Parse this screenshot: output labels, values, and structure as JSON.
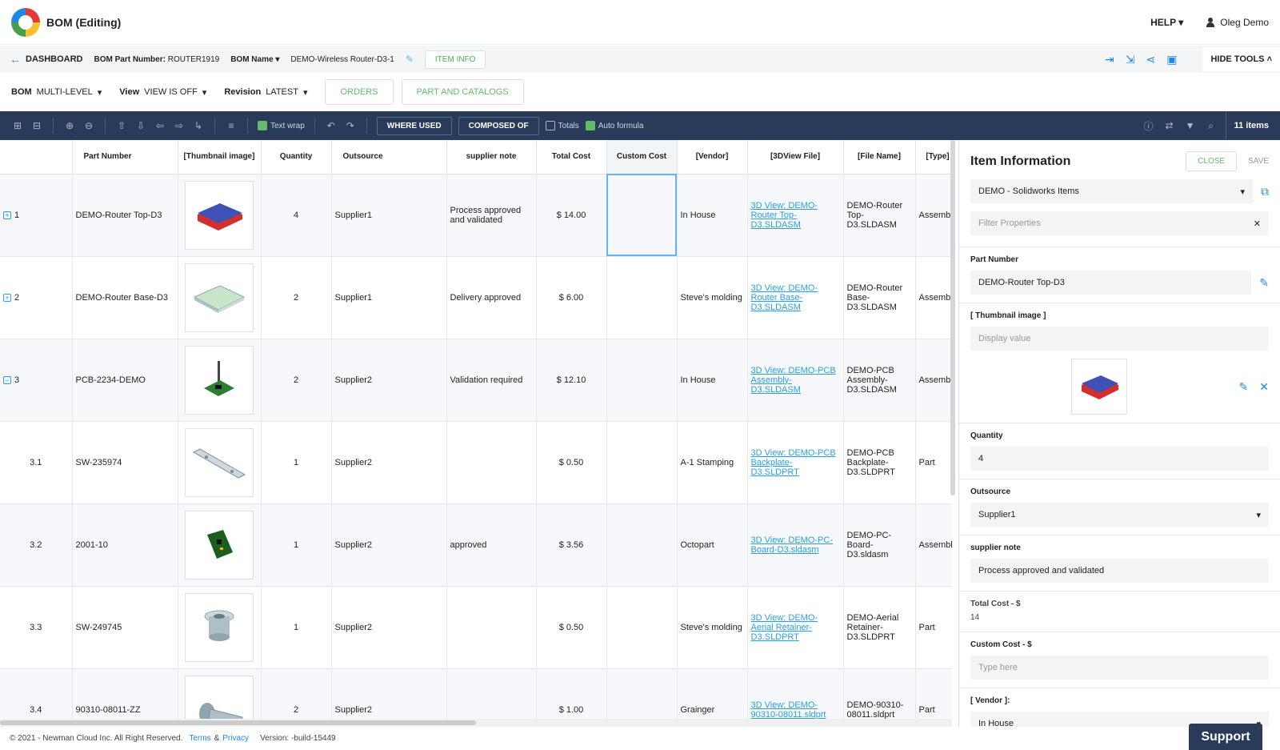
{
  "app": {
    "title": "BOM (Editing)",
    "help": "HELP",
    "user": "Oleg Demo"
  },
  "bar2": {
    "dashboard": "DASHBOARD",
    "part_number_label": "BOM Part Number:",
    "part_number": "ROUTER1919",
    "bom_name_label": "BOM Name",
    "bom_name": "DEMO-Wireless Router-D3-1",
    "item_info": "ITEM INFO",
    "hide_tools": "HIDE TOOLS"
  },
  "bar3": {
    "bom_label": "BOM",
    "bom_value": "MULTI-LEVEL",
    "view_label": "View",
    "view_value": "VIEW IS OFF",
    "revision_label": "Revision",
    "revision_value": "LATEST",
    "orders": "ORDERS",
    "catalogs": "PART AND CATALOGS"
  },
  "toolbar": {
    "text_wrap": "Text wrap",
    "where_used": "WHERE USED",
    "composed_of": "COMPOSED OF",
    "totals": "Totals",
    "auto_formula": "Auto formula",
    "items_count": "11 items"
  },
  "columns": [
    "Part Number",
    "[Thumbnail image]",
    "Quantity",
    "Outsource",
    "supplier note",
    "Total Cost",
    "Custom Cost",
    "[Vendor]",
    "[3DView File]",
    "[File Name]",
    "[Type]"
  ],
  "rows": [
    {
      "idx": "1",
      "expand": "+",
      "part": "DEMO-Router Top-D3",
      "thumb": "router-top",
      "qty": "4",
      "outsource": "Supplier1",
      "note": "Process approved and validated",
      "cost": "$ 14.00",
      "custom": "",
      "vendor": "In House",
      "view": "3D View: DEMO-Router Top-D3.SLDASM",
      "file": "DEMO-Router Top-D3.SLDASM",
      "type": "Assembly"
    },
    {
      "idx": "2",
      "expand": "+",
      "part": "DEMO-Router Base-D3",
      "thumb": "router-base",
      "qty": "2",
      "outsource": "Supplier1",
      "note": "Delivery approved",
      "cost": "$ 6.00",
      "custom": "",
      "vendor": "Steve's molding",
      "view": "3D View: DEMO-Router Base-D3.SLDASM",
      "file": "DEMO-Router Base-D3.SLDASM",
      "type": "Assembly"
    },
    {
      "idx": "3",
      "expand": "-",
      "part": "PCB-2234-DEMO",
      "thumb": "pcb-assembly",
      "qty": "2",
      "outsource": "Supplier2",
      "note": "Validation required",
      "cost": "$ 12.10",
      "custom": "",
      "vendor": "In House",
      "view": "3D View: DEMO-PCB Assembly-D3.SLDASM",
      "file": "DEMO-PCB Assembly-D3.SLDASM",
      "type": "Assembly"
    },
    {
      "idx": "3.1",
      "expand": "",
      "part": "SW-235974",
      "thumb": "backplate",
      "qty": "1",
      "outsource": "Supplier2",
      "note": "",
      "cost": "$ 0.50",
      "custom": "",
      "vendor": "A-1 Stamping",
      "view": "3D View: DEMO-PCB Backplate-D3.SLDPRT",
      "file": "DEMO-PCB Backplate-D3.SLDPRT",
      "type": "Part"
    },
    {
      "idx": "3.2",
      "expand": "",
      "part": "2001-10",
      "thumb": "pc-board",
      "qty": "1",
      "outsource": "Supplier2",
      "note": "approved",
      "cost": "$ 3.56",
      "custom": "",
      "vendor": "Octopart",
      "view": "3D View: DEMO-PC-Board-D3.sldasm",
      "file": "DEMO-PC-Board-D3.sldasm",
      "type": "Assembly"
    },
    {
      "idx": "3.3",
      "expand": "",
      "part": "SW-249745",
      "thumb": "retainer",
      "qty": "1",
      "outsource": "Supplier2",
      "note": "",
      "cost": "$ 0.50",
      "custom": "",
      "vendor": "Steve's molding",
      "view": "3D View: DEMO-Aerial Retainer-D3.SLDPRT",
      "file": "DEMO-Aerial Retainer-D3.SLDPRT",
      "type": "Part"
    },
    {
      "idx": "3.4",
      "expand": "",
      "part": "90310-08011-ZZ",
      "thumb": "screw",
      "qty": "2",
      "outsource": "Supplier2",
      "note": "",
      "cost": "$ 1.00",
      "custom": "",
      "vendor": "Grainger",
      "view": "3D View: DEMO-90310-08011.sldprt",
      "file": "DEMO-90310-08011.sldprt",
      "type": "Part"
    }
  ],
  "panel": {
    "title": "Item Information",
    "close": "CLOSE",
    "save": "SAVE",
    "source": "DEMO - Solidworks Items",
    "filter_placeholder": "Filter Properties",
    "part_number_label": "Part Number",
    "part_number": "DEMO-Router Top-D3",
    "thumb_label": "[ Thumbnail image ]",
    "thumb_placeholder": "Display value",
    "quantity_label": "Quantity",
    "quantity": "4",
    "outsource_label": "Outsource",
    "outsource": "Supplier1",
    "note_label": "supplier note",
    "note": "Process approved and validated",
    "total_cost_label": "Total Cost - $",
    "total_cost": "14",
    "custom_cost_label": "Custom Cost - $",
    "custom_cost_placeholder": "Type here",
    "vendor_label": "[ Vendor ]:",
    "vendor": "In House"
  },
  "footer": {
    "copyright": "© 2021 - Newman Cloud Inc. All Right Reserved.",
    "terms": "Terms",
    "amp": "&",
    "privacy": "Privacy",
    "version": "Version: -build-15449",
    "support": "Support"
  },
  "colors": {
    "accent": "#1e88e5",
    "green": "#66bb6a",
    "toolbar": "#2a3b5a"
  }
}
